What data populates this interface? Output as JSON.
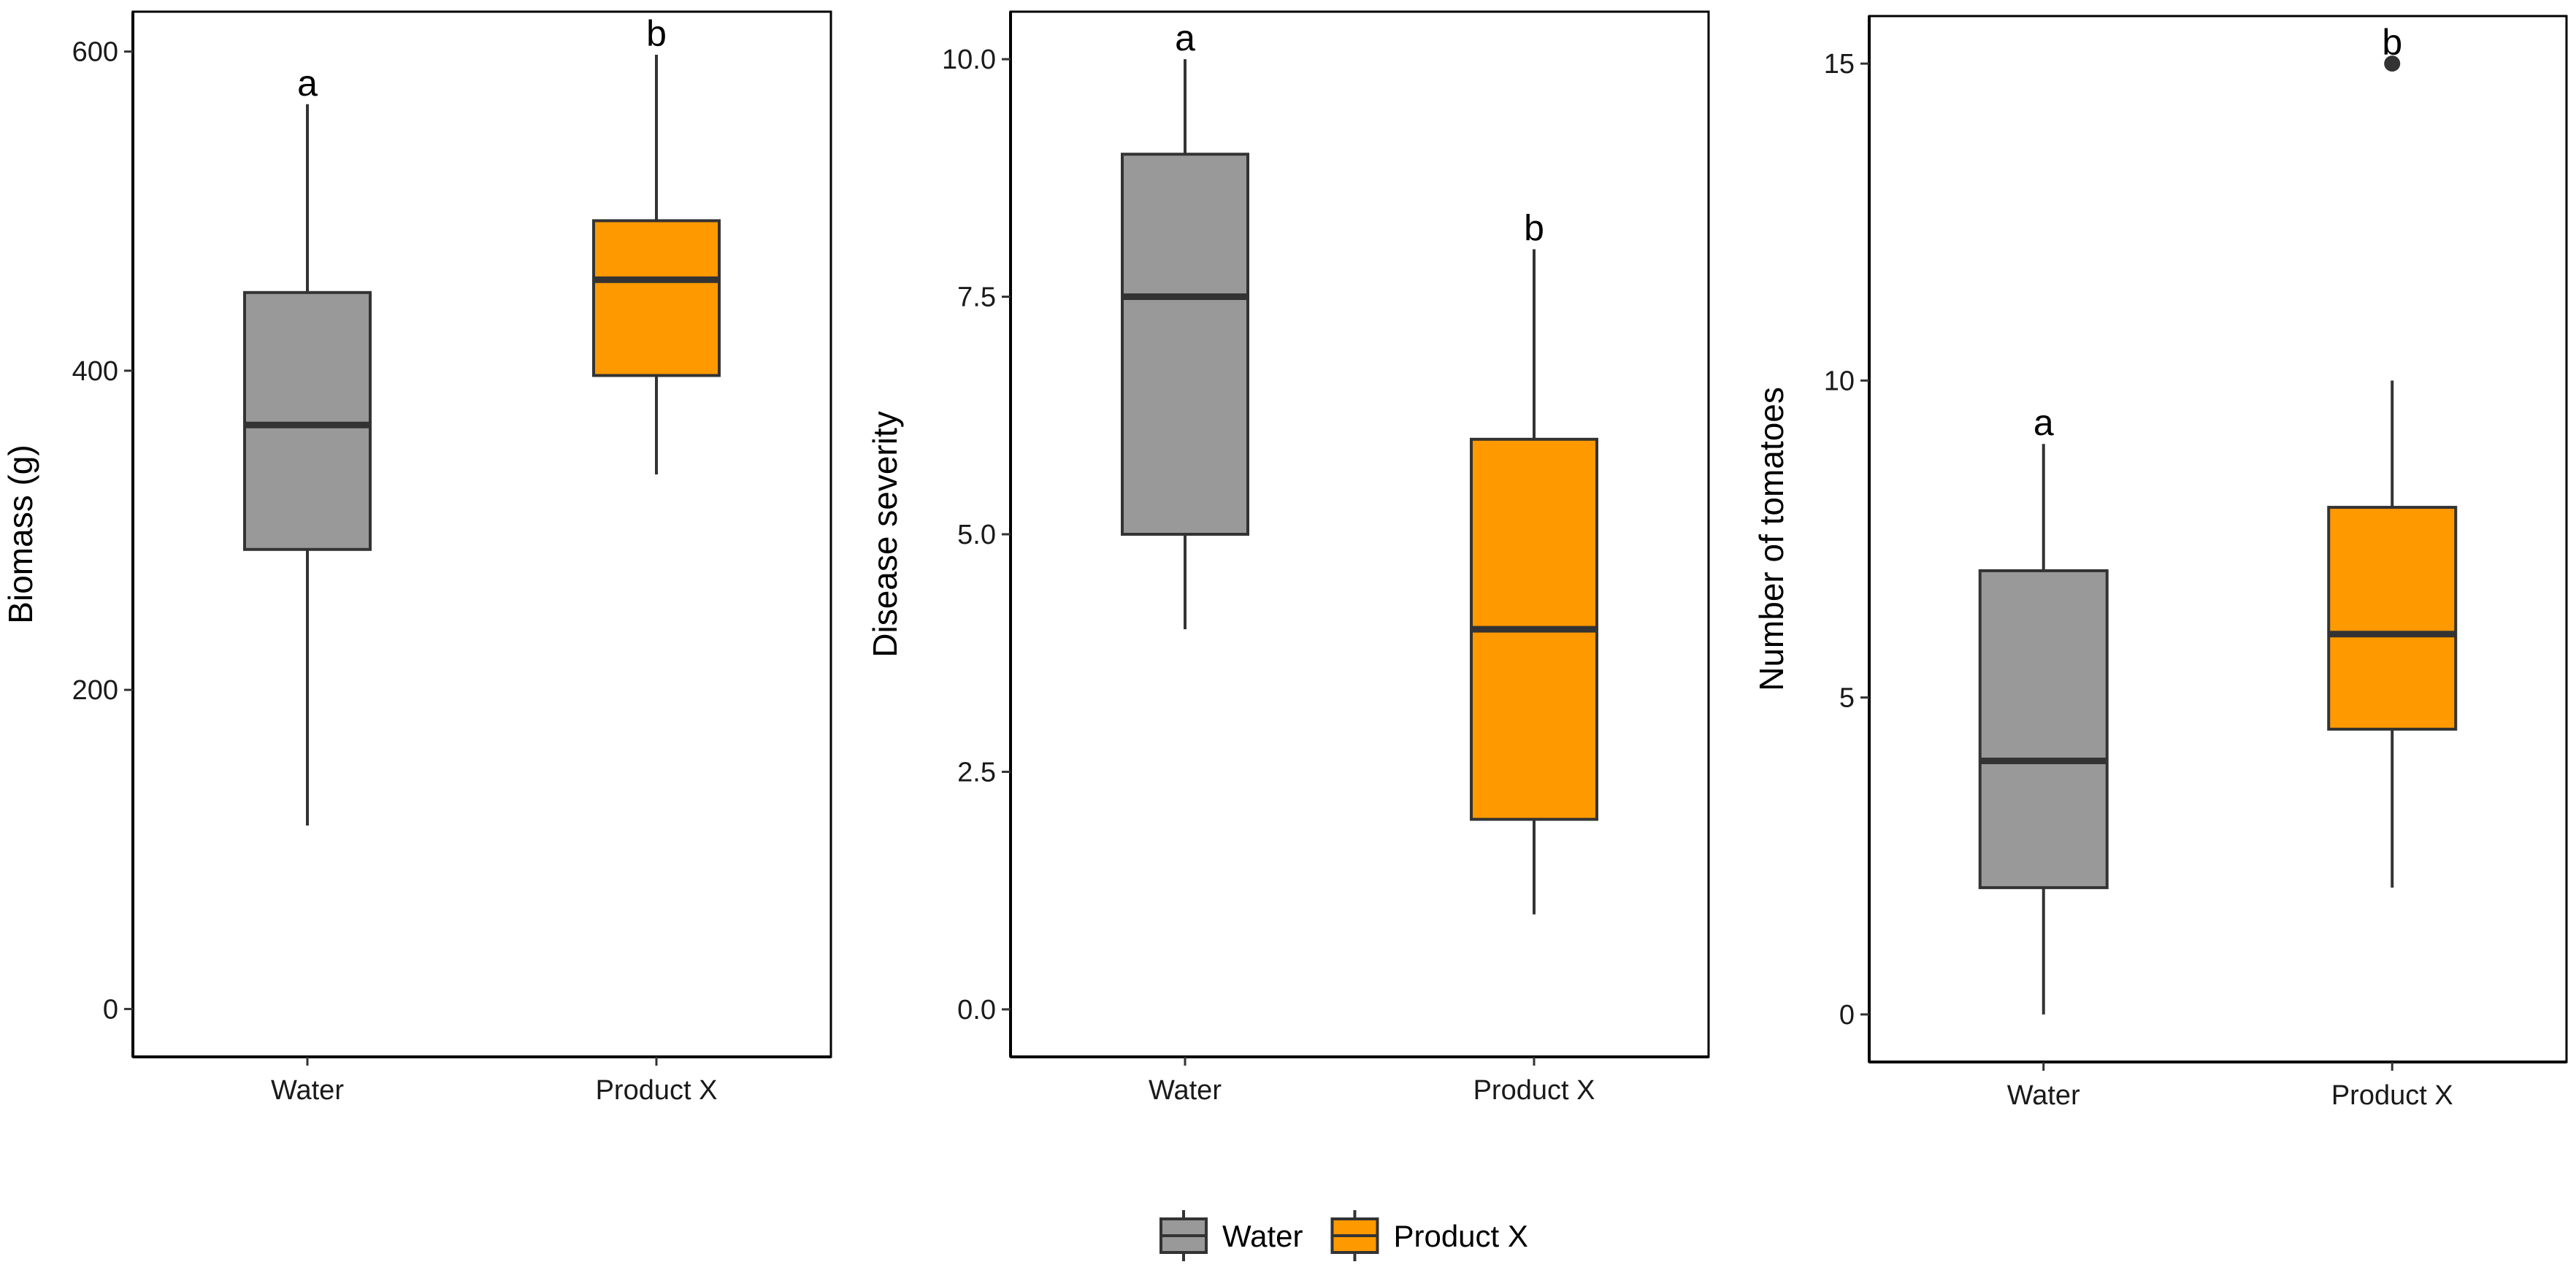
{
  "chart_data": [
    {
      "type": "boxplot",
      "ylabel": "Biomass (g)",
      "xlabel": "",
      "ylim": [
        -30,
        625
      ],
      "yticks": [
        0,
        200,
        400,
        600
      ],
      "ytick_labels": [
        "0",
        "200",
        "400",
        "600"
      ],
      "categories": [
        "Water",
        "Product X"
      ],
      "boxes": [
        {
          "category": "Water",
          "min": 115,
          "q1": 288,
          "median": 366,
          "q3": 449,
          "max": 567,
          "outliers": [],
          "letter": "a",
          "fill": "#999999"
        },
        {
          "category": "Product X",
          "min": 335,
          "q1": 397,
          "median": 457,
          "q3": 494,
          "max": 598,
          "outliers": [],
          "letter": "b",
          "fill": "#FF9900"
        }
      ]
    },
    {
      "type": "boxplot",
      "ylabel": "Disease severity",
      "xlabel": "",
      "ylim": [
        -0.5,
        10.5
      ],
      "yticks": [
        0,
        2.5,
        5,
        7.5,
        10
      ],
      "ytick_labels": [
        "0.0",
        "2.5",
        "5.0",
        "7.5",
        "10.0"
      ],
      "categories": [
        "Water",
        "Product X"
      ],
      "boxes": [
        {
          "category": "Water",
          "min": 4,
          "q1": 5,
          "median": 7.5,
          "q3": 9,
          "max": 10,
          "outliers": [],
          "letter": "a",
          "fill": "#999999"
        },
        {
          "category": "Product X",
          "min": 1,
          "q1": 2,
          "median": 4,
          "q3": 6,
          "max": 8,
          "outliers": [],
          "letter": "b",
          "fill": "#FF9900"
        }
      ]
    },
    {
      "type": "boxplot",
      "ylabel": "Number of tomatoes",
      "xlabel": "",
      "ylim": [
        -0.75,
        15.75
      ],
      "yticks": [
        0,
        5,
        10,
        15
      ],
      "ytick_labels": [
        "0",
        "5",
        "10",
        "15"
      ],
      "categories": [
        "Water",
        "Product X"
      ],
      "boxes": [
        {
          "category": "Water",
          "min": 0,
          "q1": 2,
          "median": 4,
          "q3": 7,
          "max": 9,
          "outliers": [],
          "letter": "a",
          "fill": "#999999"
        },
        {
          "category": "Product X",
          "min": 2,
          "q1": 4.5,
          "median": 6,
          "q3": 8,
          "max": 10,
          "outliers": [
            15
          ],
          "letter": "b",
          "fill": "#FF9900"
        }
      ]
    }
  ],
  "legend": {
    "position": "bottom",
    "items": [
      {
        "label": "Water",
        "fill": "#999999"
      },
      {
        "label": "Product X",
        "fill": "#FF9900"
      }
    ]
  },
  "colors": {
    "line": "#333333",
    "axis": "#000000",
    "water": "#999999",
    "product_x": "#FF9900"
  }
}
